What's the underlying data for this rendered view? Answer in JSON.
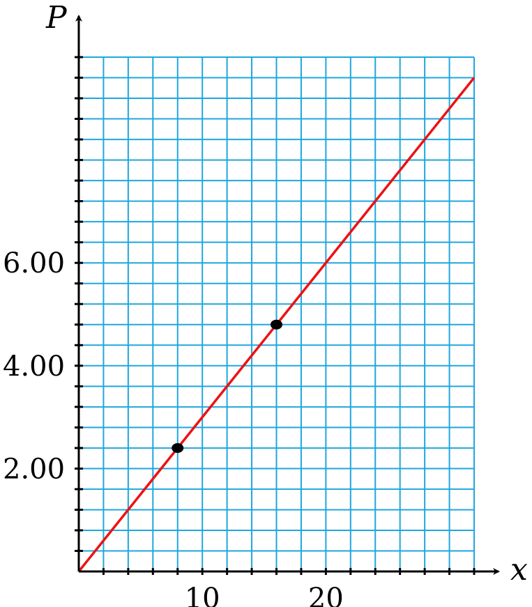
{
  "chart_data": {
    "type": "line",
    "xlabel": "x",
    "ylabel": "P",
    "xlim": [
      0,
      32
    ],
    "ylim": [
      0,
      10
    ],
    "x_ticks": [
      10,
      20
    ],
    "x_tick_labels": [
      "10",
      "20"
    ],
    "y_ticks": [
      2,
      4,
      6
    ],
    "y_tick_labels": [
      "2.00",
      "4.00",
      "6.00"
    ],
    "grid": true,
    "grid_step_x": 2,
    "grid_step_y": 0.4,
    "series": [
      {
        "x": [
          0,
          32
        ],
        "y": [
          0,
          9.6
        ]
      }
    ],
    "points": [
      {
        "x": 8,
        "y": 2.4
      },
      {
        "x": 16,
        "y": 4.8
      }
    ],
    "colors": {
      "grid": "#1ea7e0",
      "line": "#ee1111",
      "point": "#000000",
      "axis": "#000000"
    }
  }
}
